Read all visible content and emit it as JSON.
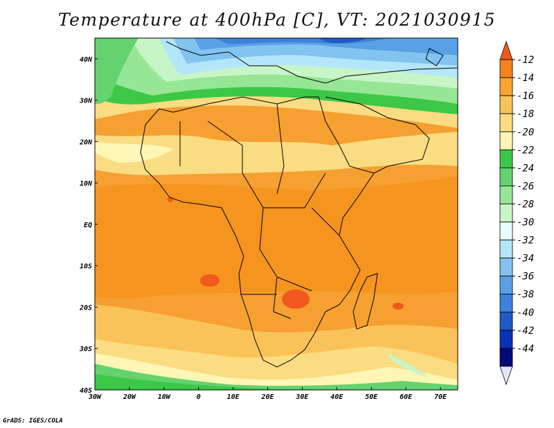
{
  "title": "Temperature at 400hPa [C], VT: 2021030915",
  "footer": "GrADS: IGES/COLA",
  "map": {
    "lon_range": [
      -30,
      75
    ],
    "lat_range": [
      -40,
      45
    ],
    "x_ticks": [
      "30W",
      "20W",
      "10W",
      "0",
      "10E",
      "20E",
      "30E",
      "40E",
      "50E",
      "60E",
      "70E"
    ],
    "y_ticks": [
      "40N",
      "30N",
      "20N",
      "10N",
      "EQ",
      "10S",
      "20S",
      "30S",
      "40S"
    ],
    "field": "Temperature at 400hPa",
    "units": "C"
  },
  "colorbar": {
    "levels": [
      "-12",
      "-14",
      "-16",
      "-18",
      "-20",
      "-22",
      "-24",
      "-26",
      "-28",
      "-30",
      "-32",
      "-34",
      "-36",
      "-38",
      "-40",
      "-42",
      "-44"
    ],
    "colors": [
      "#f05a1e",
      "#f5821e",
      "#faa532",
      "#fac35a",
      "#fadc82",
      "#fff5b4",
      "#3cc846",
      "#64d26e",
      "#96e696",
      "#c8f5c8",
      "#e6ffff",
      "#b4e6fa",
      "#82c3f0",
      "#5aa0e6",
      "#3c82dc",
      "#1e5ac8",
      "#0a32b4",
      "#000a78",
      "#e6e6fa"
    ]
  }
}
